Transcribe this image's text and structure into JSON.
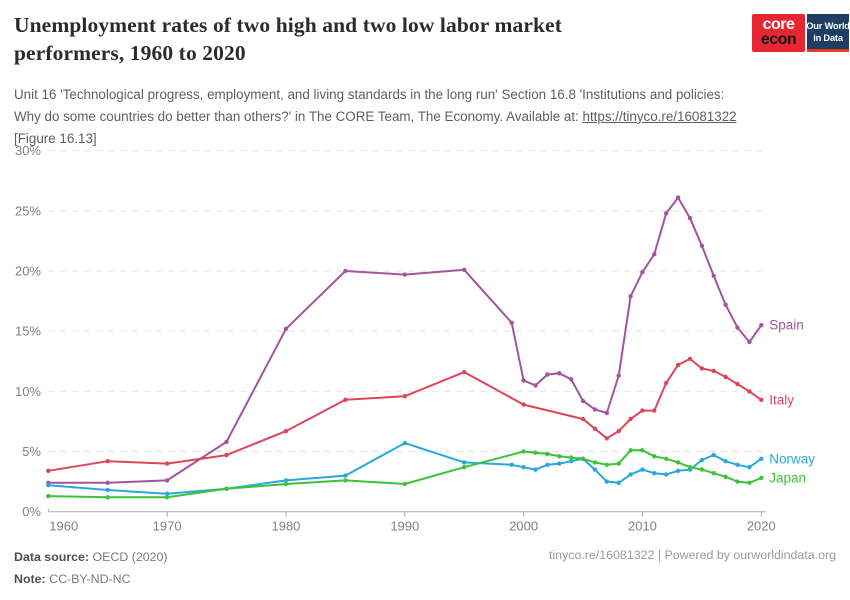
{
  "header": {
    "title_line1": "Unemployment rates of two high and two low labor market",
    "title_line2": "performers, 1960 to 2020",
    "subtitle_line1": "Unit 16 'Technological progress, employment, and living standards in the long run' Section 16.8 'Institutions and policies:",
    "subtitle_line2_pre": "Why do some countries do better than others?' in The CORE Team, The Economy. Available at: ",
    "subtitle_link": "https://tinyco.re/16081322",
    "subtitle_line3": "[Figure 16.13]",
    "logo_core_top": "core",
    "logo_core_bottom": "econ",
    "logo_owid_top": "Our World",
    "logo_owid_bottom": "in Data"
  },
  "footer": {
    "source_label": "Data source:",
    "source_value": " OECD (2020)",
    "note_label": "Note:",
    "note_value": " CC-BY-ND-NC",
    "right_text": "tinyco.re/16081322 | Powered by ourworldindata.org"
  },
  "chart_data": {
    "type": "line",
    "title": "Unemployment rates of two high and two low labor market performers, 1960 to 2020",
    "xlabel": "",
    "ylabel": "",
    "y_unit": "%",
    "x_range": [
      1960,
      2020
    ],
    "ylim": [
      0,
      30
    ],
    "x_ticks": [
      1960,
      1970,
      1980,
      1990,
      2000,
      2010,
      2020
    ],
    "y_ticks": [
      0,
      5,
      10,
      15,
      20,
      25,
      30
    ],
    "grid": "horizontal-dashed",
    "legend_position": "line-end-labels",
    "colors": {
      "grid": "#e2e2e2",
      "axis": "#ababab",
      "tick_text": "#818181"
    },
    "series": [
      {
        "name": "Spain",
        "color": "#a2559c",
        "points": [
          [
            1960,
            2.4
          ],
          [
            1965,
            2.4
          ],
          [
            1970,
            2.6
          ],
          [
            1975,
            5.8
          ],
          [
            1980,
            15.2
          ],
          [
            1985,
            20.0
          ],
          [
            1990,
            19.7
          ],
          [
            1995,
            20.1
          ],
          [
            1999,
            15.7
          ],
          [
            2000,
            10.9
          ],
          [
            2001,
            10.5
          ],
          [
            2002,
            11.4
          ],
          [
            2003,
            11.5
          ],
          [
            2004,
            11.0
          ],
          [
            2005,
            9.2
          ],
          [
            2006,
            8.5
          ],
          [
            2007,
            8.2
          ],
          [
            2008,
            11.3
          ],
          [
            2009,
            17.9
          ],
          [
            2010,
            19.9
          ],
          [
            2011,
            21.4
          ],
          [
            2012,
            24.8
          ],
          [
            2013,
            26.1
          ],
          [
            2014,
            24.4
          ],
          [
            2015,
            22.1
          ],
          [
            2016,
            19.6
          ],
          [
            2017,
            17.2
          ],
          [
            2018,
            15.3
          ],
          [
            2019,
            14.1
          ],
          [
            2020,
            15.5
          ]
        ]
      },
      {
        "name": "Italy",
        "color": "#df4558",
        "points": [
          [
            1960,
            3.4
          ],
          [
            1965,
            4.2
          ],
          [
            1970,
            4.0
          ],
          [
            1975,
            4.7
          ],
          [
            1980,
            6.7
          ],
          [
            1985,
            9.3
          ],
          [
            1990,
            9.6
          ],
          [
            1995,
            11.6
          ],
          [
            2000,
            8.9
          ],
          [
            2005,
            7.7
          ],
          [
            2006,
            6.9
          ],
          [
            2007,
            6.1
          ],
          [
            2008,
            6.7
          ],
          [
            2009,
            7.7
          ],
          [
            2010,
            8.4
          ],
          [
            2011,
            8.4
          ],
          [
            2012,
            10.7
          ],
          [
            2013,
            12.2
          ],
          [
            2014,
            12.7
          ],
          [
            2015,
            11.9
          ],
          [
            2016,
            11.7
          ],
          [
            2017,
            11.2
          ],
          [
            2018,
            10.6
          ],
          [
            2019,
            10.0
          ],
          [
            2020,
            9.3
          ]
        ]
      },
      {
        "name": "Norway",
        "color": "#2aa8dd",
        "points": [
          [
            1960,
            2.2
          ],
          [
            1965,
            1.8
          ],
          [
            1970,
            1.5
          ],
          [
            1975,
            1.9
          ],
          [
            1980,
            2.6
          ],
          [
            1985,
            3.0
          ],
          [
            1990,
            5.7
          ],
          [
            1995,
            4.1
          ],
          [
            1999,
            3.9
          ],
          [
            2000,
            3.7
          ],
          [
            2001,
            3.5
          ],
          [
            2002,
            3.9
          ],
          [
            2003,
            4.0
          ],
          [
            2004,
            4.2
          ],
          [
            2005,
            4.4
          ],
          [
            2006,
            3.5
          ],
          [
            2007,
            2.5
          ],
          [
            2008,
            2.4
          ],
          [
            2009,
            3.1
          ],
          [
            2010,
            3.5
          ],
          [
            2011,
            3.2
          ],
          [
            2012,
            3.1
          ],
          [
            2013,
            3.4
          ],
          [
            2014,
            3.5
          ],
          [
            2015,
            4.3
          ],
          [
            2016,
            4.7
          ],
          [
            2017,
            4.2
          ],
          [
            2018,
            3.9
          ],
          [
            2019,
            3.7
          ],
          [
            2020,
            4.4
          ]
        ]
      },
      {
        "name": "Japan",
        "color": "#3bc33b",
        "points": [
          [
            1960,
            1.3
          ],
          [
            1965,
            1.2
          ],
          [
            1970,
            1.2
          ],
          [
            1975,
            1.9
          ],
          [
            1980,
            2.3
          ],
          [
            1985,
            2.6
          ],
          [
            1990,
            2.3
          ],
          [
            1995,
            3.7
          ],
          [
            2000,
            5.0
          ],
          [
            2001,
            4.9
          ],
          [
            2002,
            4.8
          ],
          [
            2003,
            4.6
          ],
          [
            2004,
            4.5
          ],
          [
            2005,
            4.4
          ],
          [
            2006,
            4.1
          ],
          [
            2007,
            3.9
          ],
          [
            2008,
            4.0
          ],
          [
            2009,
            5.1
          ],
          [
            2010,
            5.1
          ],
          [
            2011,
            4.6
          ],
          [
            2012,
            4.4
          ],
          [
            2013,
            4.1
          ],
          [
            2014,
            3.7
          ],
          [
            2015,
            3.5
          ],
          [
            2016,
            3.2
          ],
          [
            2017,
            2.9
          ],
          [
            2018,
            2.5
          ],
          [
            2019,
            2.4
          ],
          [
            2020,
            2.8
          ]
        ]
      }
    ]
  }
}
